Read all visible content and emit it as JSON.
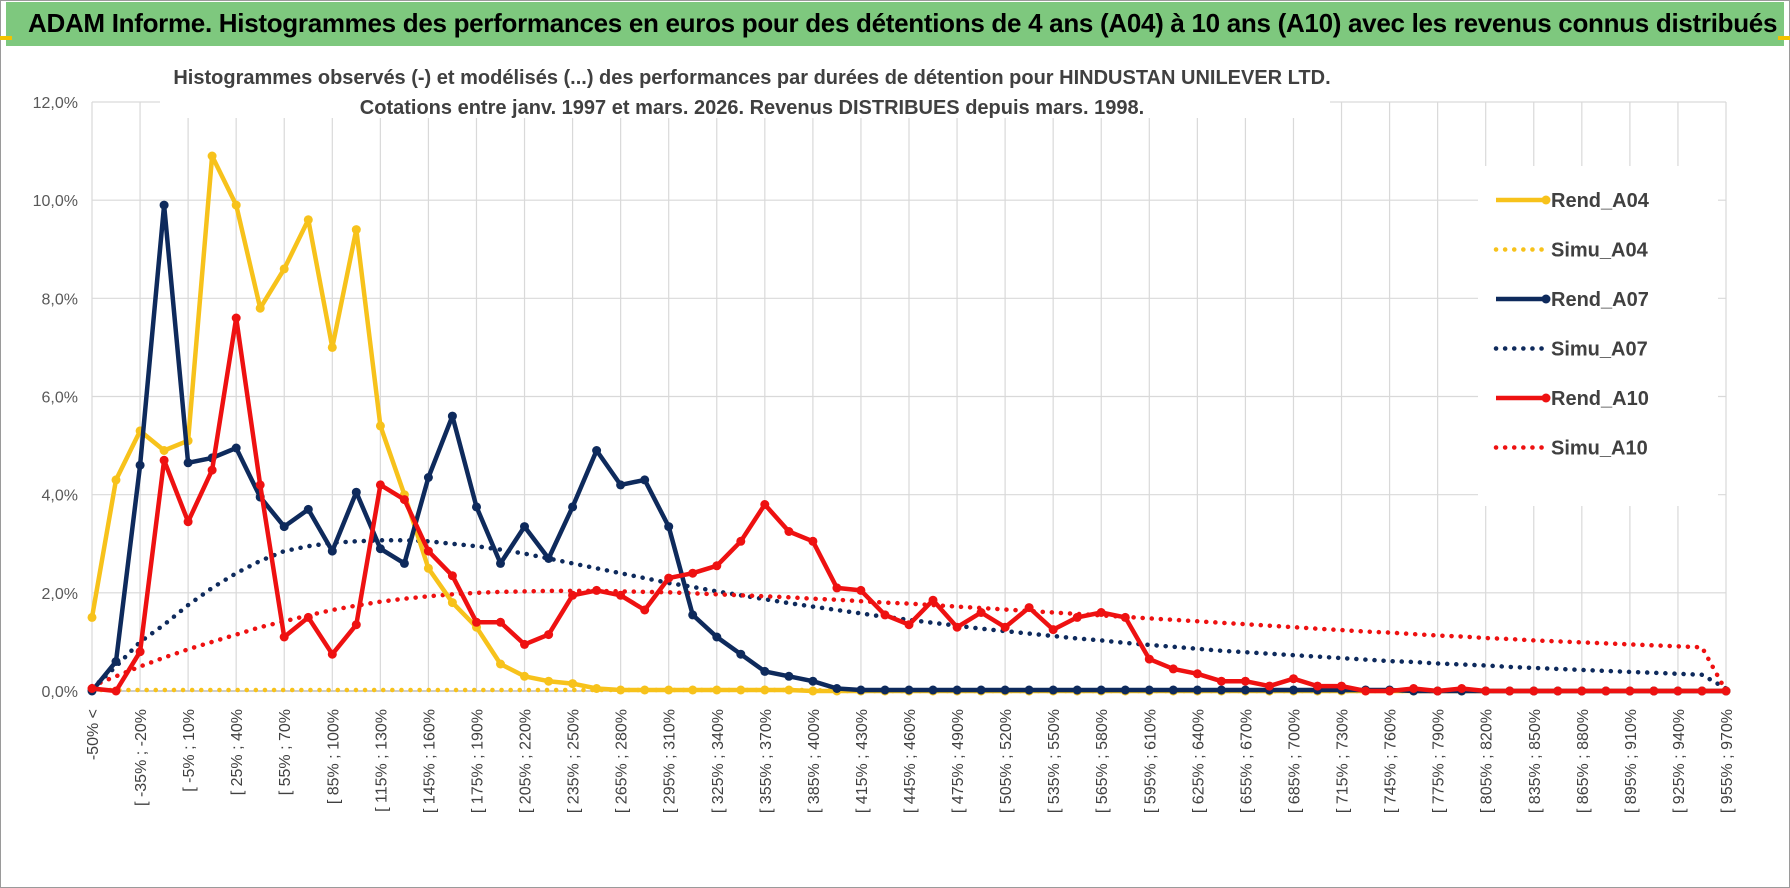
{
  "banner": {
    "title": "ADAM Informe. Histogrammes des performances en euros pour des détentions de 4 ans (A04) à 10 ans (A10) avec les revenus connus distribués"
  },
  "colors": {
    "banner_bg": "#7ec87e",
    "A04": "#f7c21b",
    "A07": "#0e2a5c",
    "A10": "#ee1111",
    "grid": "#d9d9d9"
  },
  "chart_data": {
    "type": "line",
    "title_line1": "Histogrammes observés (-) et modélisés (...) des performances par durées de détention pour HINDUSTAN UNILEVER LTD.",
    "title_line2": "Cotations entre janv. 1997 et mars. 2026. Revenus DISTRIBUES depuis mars. 1998.",
    "ylim": [
      0,
      12
    ],
    "y_ticks": [
      "0,0%",
      "2,0%",
      "4,0%",
      "6,0%",
      "8,0%",
      "10,0%",
      "12,0%"
    ],
    "category_labels": [
      "-50% <",
      "[ -35% ; -20%",
      "[ -5% ; 10%",
      "[ 25% ; 40%",
      "[ 55% ; 70%",
      "[ 85% ; 100%",
      "[ 115% ; 130%",
      "[ 145% ; 160%",
      "[ 175% ; 190%",
      "[ 205% ; 220%",
      "[ 235% ; 250%",
      "[ 265% ; 280%",
      "[ 295% ; 310%",
      "[ 325% ; 340%",
      "[ 355% ; 370%",
      "[ 385% ; 400%",
      "[ 415% ; 430%",
      "[ 445% ; 460%",
      "[ 475% ; 490%",
      "[ 505% ; 520%",
      "[ 535% ; 550%",
      "[ 565% ; 580%",
      "[ 595% ; 610%",
      "[ 625% ; 640%",
      "[ 655% ; 670%",
      "[ 685% ; 700%",
      "[ 715% ; 730%",
      "[ 745% ; 760%",
      "[ 775% ; 790%",
      "[ 805% ; 820%",
      "[ 835% ; 850%",
      "[ 865% ; 880%",
      "[ 895% ; 910%",
      "[ 925% ; 940%",
      "[ 955% ; 970%"
    ],
    "n_points": 69,
    "series": [
      {
        "name": "Rend_A04",
        "style": "solid",
        "color": "#f7c21b",
        "values": [
          1.5,
          4.3,
          5.3,
          4.9,
          5.1,
          10.9,
          9.9,
          7.8,
          8.6,
          9.6,
          7.0,
          9.4,
          5.4,
          4.0,
          2.5,
          1.8,
          1.3,
          0.55,
          0.3,
          0.2,
          0.15,
          0.05,
          0.02,
          0.02,
          0.02,
          0.02,
          0.02,
          0.02,
          0.02,
          0.02,
          0.0,
          0.0,
          0.0,
          0.0,
          0.0,
          0.0,
          0.0,
          0.0,
          0.0,
          0.0,
          0.0,
          0.0,
          0.0,
          0.0,
          0.0,
          0.0,
          0.0,
          0.0,
          0.0,
          0.0,
          0.0,
          0.0,
          0.0,
          0.0,
          0.0,
          0.0,
          0.0,
          0.0,
          0.0,
          0.0,
          0.0,
          0.0,
          0.0,
          0.0,
          0.0,
          0.0,
          0.0,
          0.0,
          0.0
        ]
      },
      {
        "name": "Simu_A04",
        "style": "dotted",
        "color": "#f7c21b",
        "values": [
          0.02,
          0.02,
          0.02,
          0.02,
          0.02,
          0.02,
          0.02,
          0.02,
          0.02,
          0.02,
          0.02,
          0.02,
          0.02,
          0.02,
          0.02,
          0.02,
          0.02,
          0.02,
          0.02,
          0.02,
          0.02,
          0.02,
          0.02,
          0.02,
          0.02,
          0.02,
          0.02,
          0.02,
          0.02,
          0.02,
          0.02,
          0.0,
          0.0,
          0.0,
          0.0,
          0.0,
          0.0,
          0.0,
          0.0,
          0.0,
          0.0,
          0.0,
          0.0,
          0.0,
          0.0,
          0.0,
          0.0,
          0.0,
          0.0,
          0.0,
          0.0,
          0.0,
          0.0,
          0.0,
          0.0,
          0.0,
          0.0,
          0.0,
          0.0,
          0.0,
          0.0,
          0.0,
          0.0,
          0.0,
          0.0,
          0.0,
          0.0,
          0.0,
          0.0
        ]
      },
      {
        "name": "Rend_A07",
        "style": "solid",
        "color": "#0e2a5c",
        "values": [
          0.0,
          0.6,
          4.6,
          9.9,
          4.65,
          4.75,
          4.95,
          3.95,
          3.35,
          3.7,
          2.85,
          4.05,
          2.9,
          2.6,
          4.35,
          5.6,
          3.75,
          2.6,
          3.35,
          2.7,
          3.75,
          4.9,
          4.2,
          4.3,
          3.35,
          1.55,
          1.1,
          0.75,
          0.4,
          0.3,
          0.2,
          0.05,
          0.02,
          0.02,
          0.02,
          0.02,
          0.02,
          0.02,
          0.02,
          0.02,
          0.02,
          0.02,
          0.02,
          0.02,
          0.02,
          0.02,
          0.02,
          0.02,
          0.02,
          0.02,
          0.02,
          0.02,
          0.02,
          0.02,
          0.02,
          0.0,
          0.0,
          0.0,
          0.0,
          0.0,
          0.0,
          0.0,
          0.0,
          0.0,
          0.0,
          0.0,
          0.0,
          0.0,
          0.0
        ]
      },
      {
        "name": "Simu_A07",
        "style": "dotted",
        "color": "#0e2a5c",
        "values": [
          0.05,
          0.5,
          1.0,
          1.35,
          1.75,
          2.1,
          2.4,
          2.65,
          2.85,
          2.95,
          3.02,
          3.05,
          3.07,
          3.07,
          3.05,
          3.0,
          2.95,
          2.88,
          2.8,
          2.7,
          2.6,
          2.5,
          2.4,
          2.3,
          2.2,
          2.12,
          2.03,
          1.95,
          1.87,
          1.79,
          1.72,
          1.65,
          1.58,
          1.51,
          1.45,
          1.39,
          1.33,
          1.27,
          1.22,
          1.17,
          1.12,
          1.07,
          1.03,
          0.98,
          0.94,
          0.9,
          0.86,
          0.82,
          0.79,
          0.76,
          0.73,
          0.7,
          0.67,
          0.64,
          0.61,
          0.59,
          0.56,
          0.54,
          0.52,
          0.49,
          0.47,
          0.45,
          0.43,
          0.41,
          0.39,
          0.37,
          0.35,
          0.33,
          0.05
        ]
      },
      {
        "name": "Rend_A10",
        "style": "solid",
        "color": "#ee1111",
        "values": [
          0.05,
          0.0,
          0.8,
          4.7,
          3.45,
          4.5,
          7.6,
          4.2,
          1.1,
          1.5,
          0.75,
          1.35,
          4.2,
          3.9,
          2.85,
          2.35,
          1.4,
          1.4,
          0.95,
          1.15,
          1.95,
          2.05,
          1.95,
          1.65,
          2.3,
          2.4,
          2.55,
          3.05,
          3.8,
          3.25,
          3.05,
          2.1,
          2.05,
          1.55,
          1.35,
          1.85,
          1.3,
          1.6,
          1.3,
          1.7,
          1.25,
          1.5,
          1.6,
          1.5,
          0.65,
          0.45,
          0.35,
          0.2,
          0.2,
          0.1,
          0.25,
          0.1,
          0.1,
          0.0,
          0.0,
          0.05,
          0.0,
          0.05,
          0.0,
          0.0,
          0.0,
          0.0,
          0.0,
          0.0,
          0.0,
          0.0,
          0.0,
          0.0,
          0.0
        ]
      },
      {
        "name": "Simu_A10",
        "style": "dotted",
        "color": "#ee1111",
        "values": [
          0.1,
          0.3,
          0.5,
          0.68,
          0.85,
          1.0,
          1.15,
          1.3,
          1.42,
          1.54,
          1.65,
          1.74,
          1.82,
          1.88,
          1.93,
          1.97,
          2.0,
          2.02,
          2.03,
          2.04,
          2.04,
          2.04,
          2.03,
          2.02,
          2.01,
          1.99,
          1.97,
          1.95,
          1.93,
          1.91,
          1.88,
          1.86,
          1.83,
          1.8,
          1.78,
          1.75,
          1.72,
          1.69,
          1.66,
          1.63,
          1.6,
          1.57,
          1.54,
          1.51,
          1.48,
          1.45,
          1.42,
          1.39,
          1.36,
          1.33,
          1.3,
          1.27,
          1.24,
          1.21,
          1.19,
          1.16,
          1.13,
          1.11,
          1.08,
          1.06,
          1.03,
          1.01,
          0.99,
          0.97,
          0.95,
          0.93,
          0.91,
          0.89,
          0.0
        ]
      }
    ],
    "legend_position": "right"
  }
}
